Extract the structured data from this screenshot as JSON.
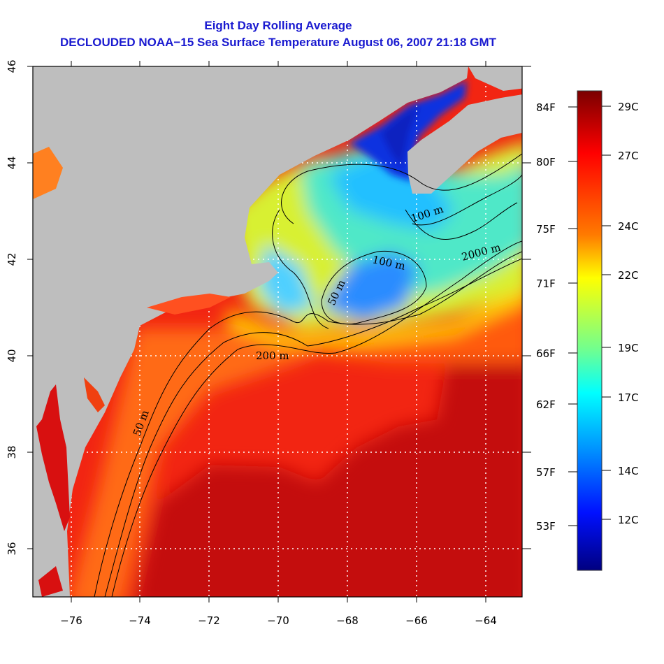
{
  "title": {
    "line1": "Eight Day Rolling Average",
    "line2": "DECLOUDED NOAA−15 Sea Surface Temperature August 06, 2007 21:18 GMT"
  },
  "map": {
    "x_ticks": [
      "−76",
      "−74",
      "−72",
      "−70",
      "−68",
      "−66",
      "−64"
    ],
    "y_ticks": [
      "46",
      "44",
      "42",
      "40",
      "38",
      "36"
    ],
    "lon_range": [
      -77,
      -63
    ],
    "lat_range": [
      35,
      46
    ],
    "contour_labels": [
      "100 m",
      "2000 m",
      "100 m",
      "50 m",
      "200 m",
      "50 m"
    ],
    "colors": {
      "land": "#bebebe",
      "grid": "#ffffff"
    }
  },
  "colorbar": {
    "fahrenheit_labels": [
      "84F",
      "80F",
      "75F",
      "71F",
      "66F",
      "62F",
      "57F",
      "53F"
    ],
    "celsius_labels": [
      "29C",
      "27C",
      "24C",
      "22C",
      "19C",
      "17C",
      "14C",
      "12C"
    ],
    "colors": [
      "#800000",
      "#ff0000",
      "#ff8000",
      "#ffff00",
      "#80ff80",
      "#00ffff",
      "#0080ff",
      "#0000ff",
      "#000080"
    ]
  }
}
